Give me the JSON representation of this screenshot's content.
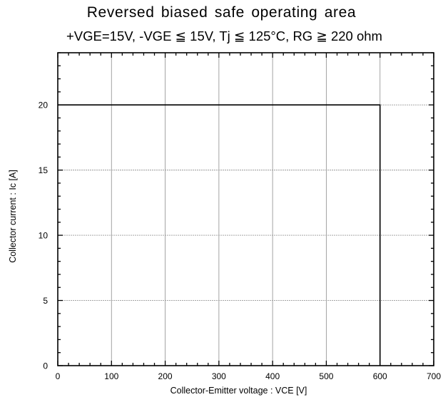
{
  "chart_data": {
    "type": "line",
    "title": "Reversed biased safe operating area",
    "subtitle": "+VGE=15V, -VGE ≦ 15V, Tj ≦ 125°C, RG ≧ 220 ohm",
    "xlabel": "Collector-Emitter voltage : VCE [V]",
    "ylabel": "Collector current : Ic [A]",
    "xlim": [
      0,
      700
    ],
    "ylim": [
      0,
      24
    ],
    "x_ticks": [
      0,
      100,
      200,
      300,
      400,
      500,
      600,
      700
    ],
    "y_ticks": [
      0,
      5,
      10,
      15,
      20
    ],
    "grid": true,
    "series": [
      {
        "x": [
          0,
          600,
          600
        ],
        "y": [
          20,
          20,
          0
        ]
      }
    ]
  },
  "colors": {
    "axis": "#000000",
    "grid": "#9a9a9a",
    "line": "#000000"
  }
}
